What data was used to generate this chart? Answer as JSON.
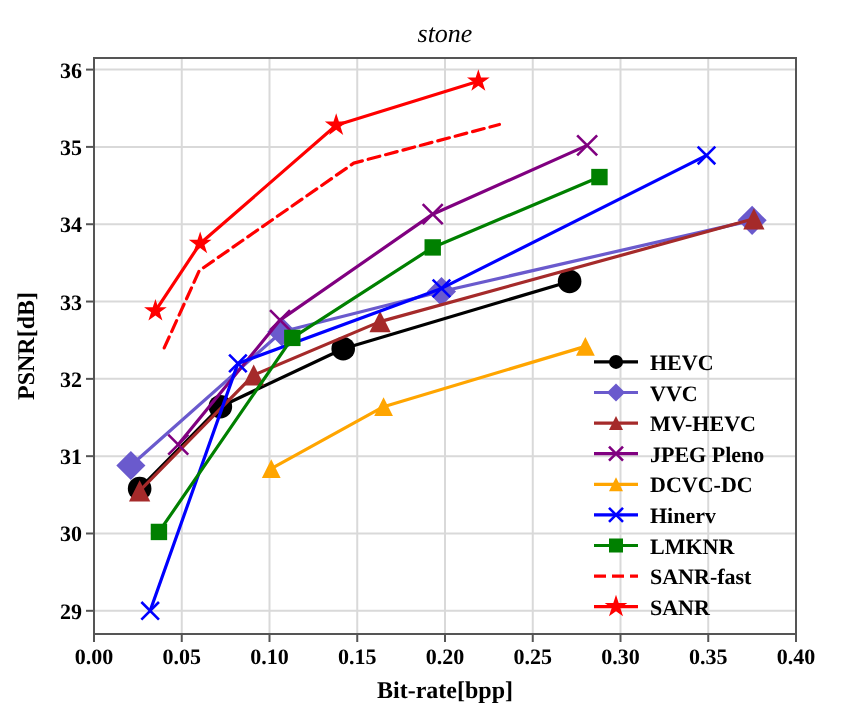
{
  "chart_data": {
    "type": "line",
    "title": "stone",
    "xlabel": "Bit-rate[bpp]",
    "ylabel": "PSNR[dB]",
    "xlim": [
      0,
      0.4
    ],
    "ylim": [
      28.7,
      36.15
    ],
    "xticks": [
      {
        "value": 0,
        "label": "0.00"
      },
      {
        "value": 0.05,
        "label": "0.05"
      },
      {
        "value": 0.1,
        "label": "0.10"
      },
      {
        "value": 0.15,
        "label": "0.15"
      },
      {
        "value": 0.2,
        "label": "0.20"
      },
      {
        "value": 0.25,
        "label": "0.25"
      },
      {
        "value": 0.3,
        "label": "0.30"
      },
      {
        "value": 0.35,
        "label": "0.35"
      },
      {
        "value": 0.4,
        "label": "0.40"
      }
    ],
    "yticks": [
      29,
      30,
      31,
      32,
      33,
      34,
      35,
      36
    ],
    "grid": true,
    "legend": "bottom right",
    "series": [
      {
        "name": "HEVC",
        "color": "#000000",
        "marker": "circle",
        "x": [
          0.026,
          0.072,
          0.142,
          0.271
        ],
        "values": [
          30.58,
          31.64,
          32.39,
          33.26
        ]
      },
      {
        "name": "VVC",
        "color": "#6a5acd",
        "marker": "diamond",
        "x": [
          0.021,
          0.107,
          0.198,
          0.375
        ],
        "values": [
          30.88,
          32.61,
          33.13,
          34.05
        ]
      },
      {
        "name": "MV-HEVC",
        "color": "#a52a2a",
        "marker": "triangle",
        "x": [
          0.026,
          0.091,
          0.163,
          0.376
        ],
        "values": [
          30.55,
          32.05,
          32.74,
          34.07
        ]
      },
      {
        "name": "JPEG Pleno",
        "color": "#800080",
        "marker": "cross",
        "x": [
          0.048,
          0.106,
          0.193,
          0.281
        ],
        "values": [
          31.15,
          32.76,
          34.13,
          35.02
        ]
      },
      {
        "name": "DCVC-DC",
        "color": "#ffa500",
        "marker": "triangle",
        "x": [
          0.101,
          0.165,
          0.28
        ],
        "values": [
          30.84,
          31.64,
          32.42
        ]
      },
      {
        "name": "Hinerv",
        "color": "#0000ff",
        "marker": "cross",
        "x": [
          0.032,
          0.082,
          0.198,
          0.349
        ],
        "values": [
          29.0,
          32.2,
          33.17,
          34.89
        ]
      },
      {
        "name": "LMKNR",
        "color": "#008000",
        "marker": "square",
        "x": [
          0.037,
          0.113,
          0.193,
          0.288
        ],
        "values": [
          30.02,
          32.53,
          33.7,
          34.61
        ]
      },
      {
        "name": "SANR-fast",
        "color": "#ff0000",
        "marker": "none",
        "line_style": "dashed",
        "x": [
          0.04,
          0.06,
          0.148,
          0.231
        ],
        "values": [
          32.4,
          33.4,
          34.79,
          35.29
        ]
      },
      {
        "name": "SANR",
        "color": "#ff0000",
        "marker": "star",
        "x": [
          0.035,
          0.0605,
          0.138,
          0.219
        ],
        "values": [
          32.88,
          33.75,
          35.28,
          35.85
        ]
      }
    ]
  }
}
